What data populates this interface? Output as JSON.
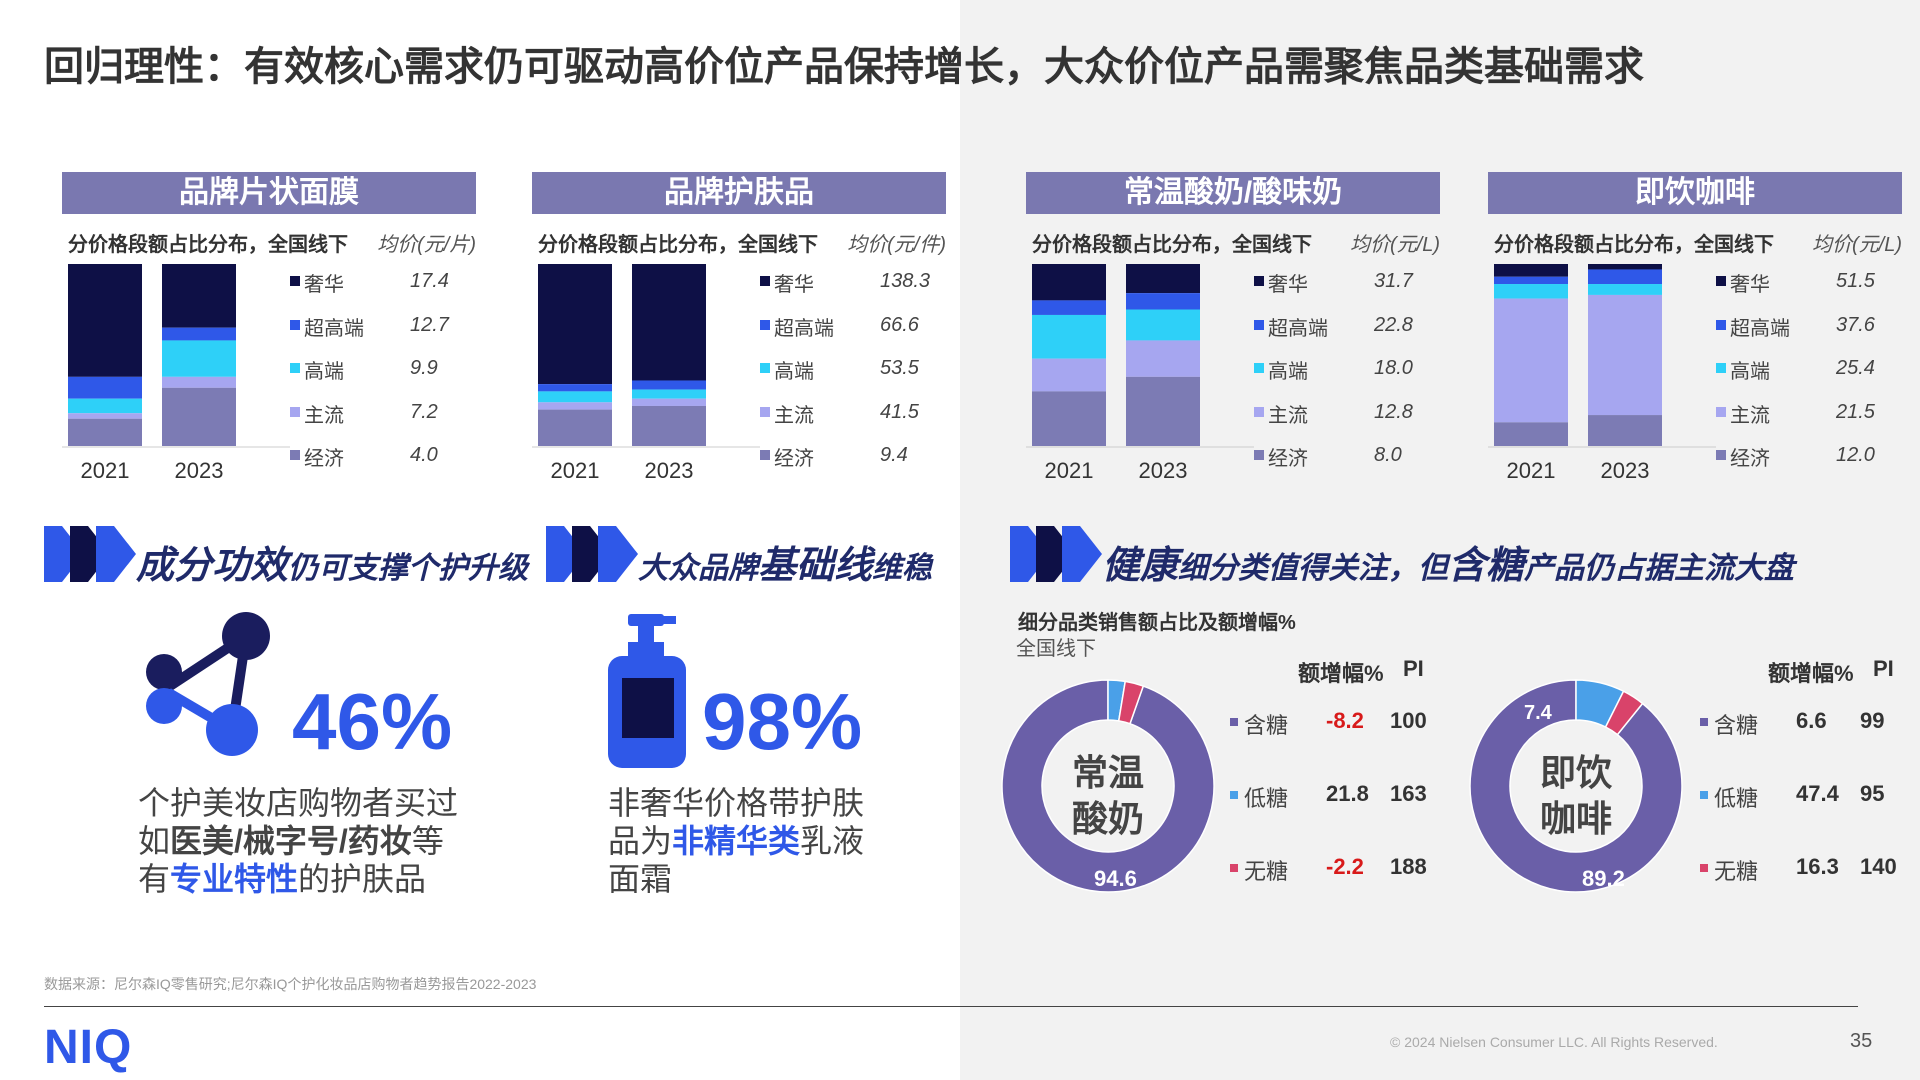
{
  "title": "回归理性：有效核心需求仍可驱动高价位产品保持增长，大众价位产品需聚焦品类基础需求",
  "colors": {
    "奢华": "#0e1046",
    "超高端": "#2f58e8",
    "高端": "#2ed0f8",
    "主流": "#a6a6f0",
    "经济": "#7c7bb4",
    "donut_main": "#6a5fa8",
    "donut_lowsugar": "#4aa0e8",
    "donut_nosugar": "#d9436a",
    "banner": "#7a78b0",
    "accent": "#2f58e8",
    "negative": "#d81a1a"
  },
  "chart_data": [
    {
      "type": "bar",
      "title": "品牌片状面膜",
      "subtitle": "分价格段额占比分布，全国线下",
      "unit_label": "均价(元/片)",
      "categories": [
        "2021",
        "2023"
      ],
      "series": [
        {
          "name": "奢华",
          "avg_price": "17.4",
          "values": [
            62,
            35
          ]
        },
        {
          "name": "超高端",
          "avg_price": "12.7",
          "values": [
            12,
            7
          ]
        },
        {
          "name": "高端",
          "avg_price": "9.9",
          "values": [
            8,
            20
          ]
        },
        {
          "name": "主流",
          "avg_price": "7.2",
          "values": [
            3,
            6
          ]
        },
        {
          "name": "经济",
          "avg_price": "4.0",
          "values": [
            15,
            32
          ]
        }
      ],
      "ylim": [
        0,
        100
      ]
    },
    {
      "type": "bar",
      "title": "品牌护肤品",
      "subtitle": "分价格段额占比分布，全国线下",
      "unit_label": "均价(元/件)",
      "categories": [
        "2021",
        "2023"
      ],
      "series": [
        {
          "name": "奢华",
          "avg_price": "138.3",
          "values": [
            66,
            64
          ]
        },
        {
          "name": "超高端",
          "avg_price": "66.6",
          "values": [
            4,
            5
          ]
        },
        {
          "name": "高端",
          "avg_price": "53.5",
          "values": [
            6,
            5
          ]
        },
        {
          "name": "主流",
          "avg_price": "41.5",
          "values": [
            4,
            4
          ]
        },
        {
          "name": "经济",
          "avg_price": "9.4",
          "values": [
            20,
            22
          ]
        }
      ],
      "ylim": [
        0,
        100
      ]
    },
    {
      "type": "bar",
      "title": "常温酸奶/酸味奶",
      "subtitle": "分价格段额占比分布，全国线下",
      "unit_label": "均价(元/L)",
      "categories": [
        "2021",
        "2023"
      ],
      "series": [
        {
          "name": "奢华",
          "avg_price": "31.7",
          "values": [
            20,
            16
          ]
        },
        {
          "name": "超高端",
          "avg_price": "22.8",
          "values": [
            8,
            9
          ]
        },
        {
          "name": "高端",
          "avg_price": "18.0",
          "values": [
            24,
            17
          ]
        },
        {
          "name": "主流",
          "avg_price": "12.8",
          "values": [
            18,
            20
          ]
        },
        {
          "name": "经济",
          "avg_price": "8.0",
          "values": [
            30,
            38
          ]
        }
      ],
      "ylim": [
        0,
        100
      ]
    },
    {
      "type": "bar",
      "title": "即饮咖啡",
      "subtitle": "分价格段额占比分布，全国线下",
      "unit_label": "均价(元/L)",
      "categories": [
        "2021",
        "2023"
      ],
      "series": [
        {
          "name": "奢华",
          "avg_price": "51.5",
          "values": [
            7,
            3
          ]
        },
        {
          "name": "超高端",
          "avg_price": "37.6",
          "values": [
            4,
            8
          ]
        },
        {
          "name": "高端",
          "avg_price": "25.4",
          "values": [
            8,
            6
          ]
        },
        {
          "name": "主流",
          "avg_price": "21.5",
          "values": [
            68,
            66
          ]
        },
        {
          "name": "经济",
          "avg_price": "12.0",
          "values": [
            13,
            17
          ]
        }
      ],
      "ylim": [
        0,
        100
      ]
    },
    {
      "type": "pie",
      "center_label": [
        "常温",
        "酸奶"
      ],
      "labels": [
        "含糖",
        "低糖",
        "无糖"
      ],
      "values": [
        94.6,
        2.6,
        2.8
      ],
      "growth": [
        "-8.2",
        "21.8",
        "-2.2"
      ],
      "pi": [
        "100",
        "163",
        "188"
      ]
    },
    {
      "type": "pie",
      "center_label": [
        "即饮",
        "咖啡"
      ],
      "labels": [
        "含糖",
        "低糖",
        "无糖"
      ],
      "values": [
        89.2,
        7.4,
        3.4
      ],
      "growth": [
        "6.6",
        "47.4",
        "16.3"
      ],
      "pi": [
        "99",
        "95",
        "140"
      ]
    }
  ],
  "headlines": [
    {
      "parts": [
        {
          "t": "成分功效",
          "big": true
        },
        {
          "t": "仍可支撑个护升级",
          "big": false
        }
      ]
    },
    {
      "parts": [
        {
          "t": "大众品牌",
          "big": false
        },
        {
          "t": "基础线",
          "big": true
        },
        {
          "t": "维稳",
          "big": false
        }
      ]
    },
    {
      "parts": [
        {
          "t": "健康",
          "big": true
        },
        {
          "t": "细分类值得关注，但",
          "big": false
        },
        {
          "t": "含糖",
          "big": true
        },
        {
          "t": "产品仍占据主流大盘",
          "big": false
        }
      ]
    }
  ],
  "stat1": {
    "pct": "46%",
    "icon": "share-network-icon",
    "line1": "个护美妆店购物者买过",
    "line2_a": "如",
    "line2_b": "医美/械字号/药妆",
    "line2_c": "等",
    "line3_a": "有",
    "line3_b": "专业特性",
    "line3_c": "的护肤品"
  },
  "stat2": {
    "pct": "98%",
    "icon": "pump-bottle-icon",
    "line1": "非奢华价格带护肤",
    "line2_a": "品为",
    "line2_b": "非精华类",
    "line2_c": "乳液",
    "line3": "面霜"
  },
  "donut_section": {
    "title": "细分品类销售额占比及额增幅%",
    "subtitle": "全国线下",
    "col_growth": "额增幅%",
    "col_pi": "PI"
  },
  "source": "数据来源：尼尔森IQ零售研究;尼尔森IQ个护化妆品店购物者趋势报告2022-2023",
  "logo": "NIQ",
  "copyright": "© 2024 Nielsen Consumer LLC. All Rights Reserved.",
  "page_number": "35"
}
